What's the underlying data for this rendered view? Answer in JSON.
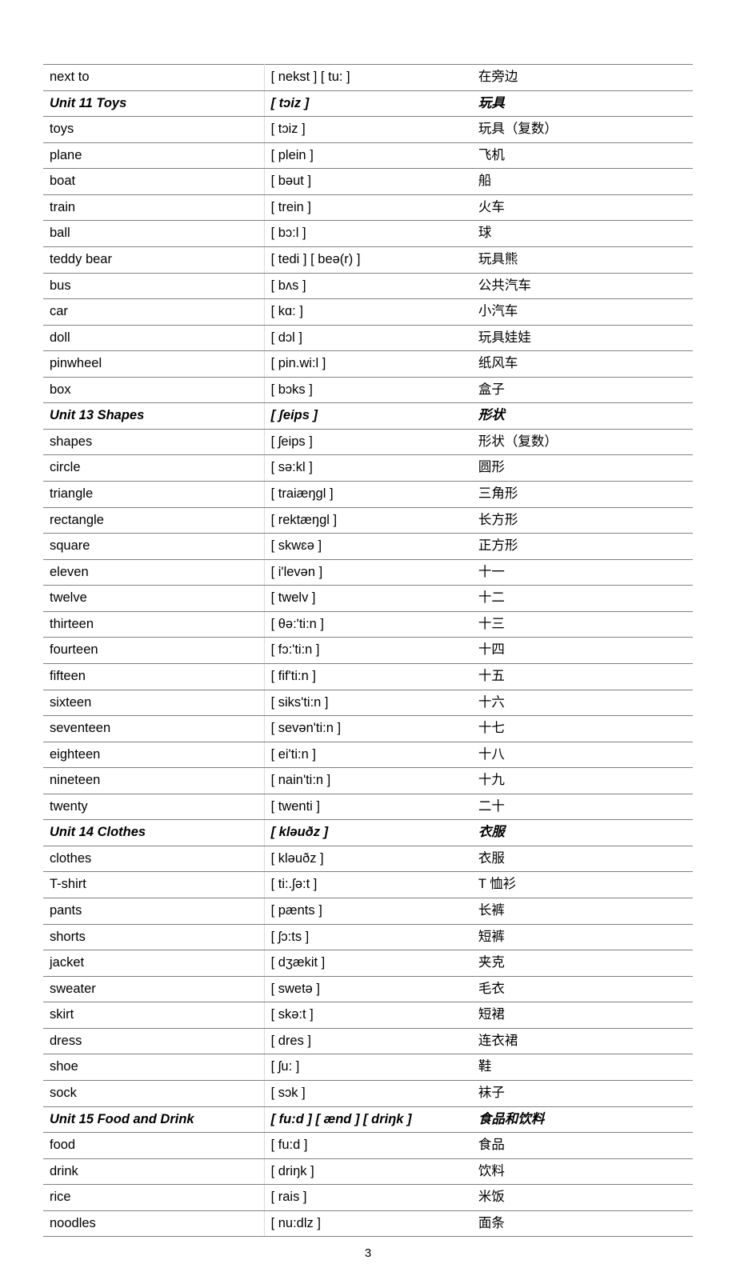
{
  "page_number": "3",
  "columns": [
    "word",
    "phonetic",
    "chinese"
  ],
  "rows": [
    {
      "word": "next to",
      "phonetic": "[ nekst ] [ tu: ]",
      "chinese": "在旁边",
      "unit": false
    },
    {
      "word": "Unit 11 Toys",
      "phonetic": "[ tɔiz ]",
      "chinese": "玩具",
      "unit": true
    },
    {
      "word": "toys",
      "phonetic": "[ tɔiz ]",
      "chinese": "玩具（复数）",
      "unit": false
    },
    {
      "word": "plane",
      "phonetic": "[ plein ]",
      "chinese": "飞机",
      "unit": false
    },
    {
      "word": "boat",
      "phonetic": "[ bəut ]",
      "chinese": "船",
      "unit": false
    },
    {
      "word": "train",
      "phonetic": "[ trein ]",
      "chinese": "火车",
      "unit": false
    },
    {
      "word": "ball",
      "phonetic": "[ bɔ:l ]",
      "chinese": "球",
      "unit": false
    },
    {
      "word": "teddy bear",
      "phonetic": "[ tedi ] [ beə(r) ]",
      "chinese": "玩具熊",
      "unit": false
    },
    {
      "word": "bus",
      "phonetic": "[ bʌs ]",
      "chinese": "公共汽车",
      "unit": false
    },
    {
      "word": "car",
      "phonetic": "[ kɑ: ]",
      "chinese": "小汽车",
      "unit": false
    },
    {
      "word": "doll",
      "phonetic": "[ dɔl ]",
      "chinese": "玩具娃娃",
      "unit": false
    },
    {
      "word": "pinwheel",
      "phonetic": "[ pin.wi:l ]",
      "chinese": "纸风车",
      "unit": false
    },
    {
      "word": "box",
      "phonetic": "[ bɔks ]",
      "chinese": "盒子",
      "unit": false
    },
    {
      "word": "Unit 13 Shapes",
      "phonetic": "[ ʃeips ]",
      "chinese": "形状",
      "unit": true
    },
    {
      "word": "shapes",
      "phonetic": "[ ʃeips ]",
      "chinese": "形状（复数）",
      "unit": false
    },
    {
      "word": "circle",
      "phonetic": "[ sə:kl ]",
      "chinese": "圆形",
      "unit": false
    },
    {
      "word": "triangle",
      "phonetic": "[ traiæŋgl ]",
      "chinese": "三角形",
      "unit": false
    },
    {
      "word": "rectangle",
      "phonetic": "[ rektæŋgl ]",
      "chinese": "长方形",
      "unit": false
    },
    {
      "word": "square",
      "phonetic": "[ skwɛə ]",
      "chinese": "正方形",
      "unit": false
    },
    {
      "word": "eleven",
      "phonetic": "[ i'levən ]",
      "chinese": "十一",
      "unit": false
    },
    {
      "word": "twelve",
      "phonetic": "[ twelv ]",
      "chinese": "十二",
      "unit": false
    },
    {
      "word": "thirteen",
      "phonetic": "[ θə:'ti:n ]",
      "chinese": "十三",
      "unit": false
    },
    {
      "word": "fourteen",
      "phonetic": "[ fɔ:'ti:n ]",
      "chinese": "十四",
      "unit": false
    },
    {
      "word": "fifteen",
      "phonetic": "[ fif'ti:n ]",
      "chinese": "十五",
      "unit": false
    },
    {
      "word": "sixteen",
      "phonetic": "[ siks'ti:n ]",
      "chinese": "十六",
      "unit": false
    },
    {
      "word": "seventeen",
      "phonetic": "[ sevən'ti:n ]",
      "chinese": "十七",
      "unit": false
    },
    {
      "word": "eighteen",
      "phonetic": "[ ei'ti:n ]",
      "chinese": "十八",
      "unit": false
    },
    {
      "word": "nineteen",
      "phonetic": "[ nain'ti:n ]",
      "chinese": "十九",
      "unit": false
    },
    {
      "word": "twenty",
      "phonetic": "[ twenti ]",
      "chinese": "二十",
      "unit": false
    },
    {
      "word": "Unit 14 Clothes",
      "phonetic": "[ kləuðz ]",
      "chinese": "衣服",
      "unit": true
    },
    {
      "word": "clothes",
      "phonetic": "[ kləuðz ]",
      "chinese": "衣服",
      "unit": false
    },
    {
      "word": "T-shirt",
      "phonetic": "[ ti:.ʃə:t ]",
      "chinese": "T 恤衫",
      "unit": false
    },
    {
      "word": "pants",
      "phonetic": "[ pænts ]",
      "chinese": "长裤",
      "unit": false
    },
    {
      "word": "shorts",
      "phonetic": "[ ʃɔ:ts ]",
      "chinese": "短裤",
      "unit": false
    },
    {
      "word": "jacket",
      "phonetic": "[ dʒækit ]",
      "chinese": "夹克",
      "unit": false
    },
    {
      "word": "sweater",
      "phonetic": "[ swetə ]",
      "chinese": "毛衣",
      "unit": false
    },
    {
      "word": "skirt",
      "phonetic": "[ skə:t ]",
      "chinese": "短裙",
      "unit": false
    },
    {
      "word": "dress",
      "phonetic": "[ dres ]",
      "chinese": "连衣裙",
      "unit": false
    },
    {
      "word": "shoe",
      "phonetic": "[ ʃu: ]",
      "chinese": "鞋",
      "unit": false
    },
    {
      "word": "sock",
      "phonetic": "[ sɔk ]",
      "chinese": "袜子",
      "unit": false
    },
    {
      "word": "Unit 15 Food and Drink",
      "phonetic": "[ fu:d ] [ ænd ] [ driŋk ]",
      "chinese": "食品和饮料",
      "unit": true
    },
    {
      "word": "food",
      "phonetic": "[ fu:d ]",
      "chinese": "食品",
      "unit": false
    },
    {
      "word": "drink",
      "phonetic": "[ driŋk ]",
      "chinese": "饮料",
      "unit": false
    },
    {
      "word": "rice",
      "phonetic": "[ rais ]",
      "chinese": "米饭",
      "unit": false
    },
    {
      "word": "noodles",
      "phonetic": "[ nu:dlz ]",
      "chinese": "面条",
      "unit": false
    }
  ]
}
